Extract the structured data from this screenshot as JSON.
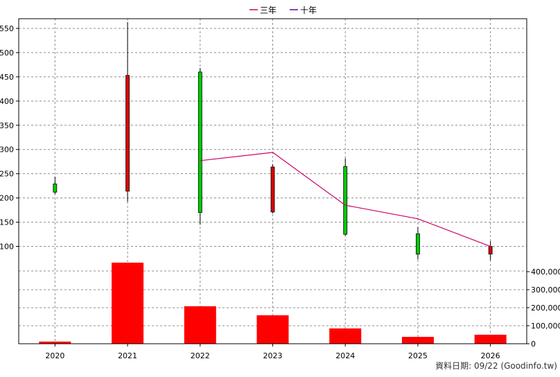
{
  "legend": [
    {
      "label": "三年",
      "color": "#cc0066"
    },
    {
      "label": "十年",
      "color": "#660099"
    }
  ],
  "footer": "資料日期: 09/22  (Goodinfo.tw)",
  "colors": {
    "up": "#00cc00",
    "down": "#dd0000",
    "volume": "#ff0000",
    "grid": "#8c8c8c"
  },
  "chart_data": [
    {
      "type": "candlestick",
      "categories": [
        "2020",
        "2021",
        "2022",
        "2023",
        "2024",
        "2025",
        "2026"
      ],
      "ylim": [
        65,
        570
      ],
      "yticks": [
        100,
        150,
        200,
        250,
        300,
        350,
        400,
        450,
        500,
        550
      ],
      "grid": true,
      "candles": [
        {
          "x": "2020",
          "open": 212,
          "close": 229,
          "high": 244,
          "low": 208,
          "direction": "up"
        },
        {
          "x": "2021",
          "open": 453,
          "close": 214,
          "high": 563,
          "low": 192,
          "direction": "down"
        },
        {
          "x": "2022",
          "open": 170,
          "close": 460,
          "high": 468,
          "low": 145,
          "direction": "up"
        },
        {
          "x": "2023",
          "open": 264,
          "close": 171,
          "high": 270,
          "low": 168,
          "direction": "down"
        },
        {
          "x": "2024",
          "open": 125,
          "close": 265,
          "high": 282,
          "low": 122,
          "direction": "up"
        },
        {
          "x": "2025",
          "open": 84,
          "close": 126,
          "high": 140,
          "low": 73,
          "direction": "up"
        },
        {
          "x": "2026",
          "open": 100,
          "close": 84,
          "high": 111,
          "low": 71,
          "direction": "down"
        }
      ],
      "series": [
        {
          "name": "三年",
          "color": "#cc0066",
          "x": [
            "2022",
            "2023",
            "2024",
            "2025",
            "2026"
          ],
          "values": [
            277,
            294,
            185,
            157,
            100
          ]
        }
      ]
    },
    {
      "type": "bar",
      "categories": [
        "2020",
        "2021",
        "2022",
        "2023",
        "2024",
        "2025",
        "2026"
      ],
      "values": [
        12000,
        450000,
        208000,
        158000,
        85000,
        38000,
        50000
      ],
      "ylim": [
        0,
        450000
      ],
      "yticks": [
        "0",
        "100,000",
        "200,000",
        "300,000",
        "400,000"
      ],
      "ytick_values": [
        0,
        100000,
        200000,
        300000,
        400000
      ],
      "grid": true
    }
  ]
}
